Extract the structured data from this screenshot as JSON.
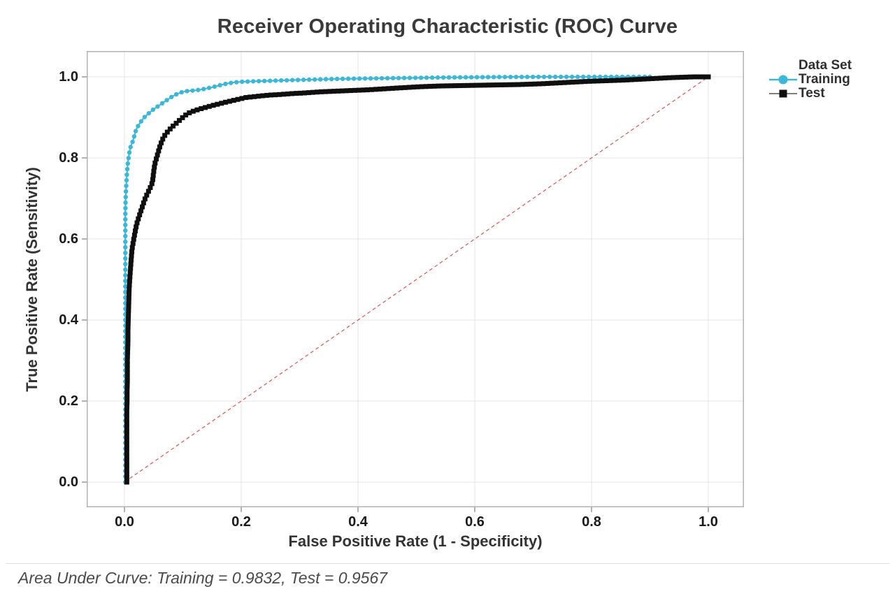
{
  "footer": {
    "text": "Area Under Curve: Training = 0.9832, Test = 0.9567"
  },
  "legend": {
    "title": "Data Set",
    "position": "right"
  },
  "colors": {
    "training": "#3bb7d8",
    "test": "#0f0f0f",
    "reference": "#e0534d",
    "grid": "#e4e4e4",
    "frame": "#b3b3b3",
    "tick": "#8a8a8a"
  },
  "chart_data": {
    "type": "line",
    "title": "Receiver Operating Characteristic (ROC) Curve",
    "xlabel": "False Positive Rate (1 - Specificity)",
    "ylabel": "True Positive Rate (Sensitivity)",
    "xlim": [
      0,
      1
    ],
    "ylim": [
      0,
      1
    ],
    "xticks": [
      "0.0",
      "0.2",
      "0.4",
      "0.6",
      "0.8",
      "1.0"
    ],
    "yticks": [
      "0.0",
      "0.2",
      "0.4",
      "0.6",
      "0.8",
      "1.0"
    ],
    "grid": true,
    "legend_position": "right",
    "reference_line": {
      "from": [
        0,
        0
      ],
      "to": [
        1,
        1
      ],
      "style": "dashed",
      "color": "#e0534d"
    },
    "series": [
      {
        "name": "Training",
        "auc": 0.9832,
        "color": "#3bb7d8",
        "marker": "circle",
        "marker_size": 3.2,
        "marker_spacing": 8,
        "line_width": 2,
        "points": [
          [
            0.0015,
            0
          ],
          [
            0.0015,
            0.035
          ],
          [
            0.0015,
            0.07
          ],
          [
            0.0015,
            0.105
          ],
          [
            0.0015,
            0.14
          ],
          [
            0.0015,
            0.175
          ],
          [
            0.0015,
            0.21
          ],
          [
            0.0015,
            0.245
          ],
          [
            0.0015,
            0.28
          ],
          [
            0.0015,
            0.315
          ],
          [
            0.0015,
            0.35
          ],
          [
            0.0015,
            0.385
          ],
          [
            0.0015,
            0.42
          ],
          [
            0.0015,
            0.455
          ],
          [
            0.0015,
            0.49
          ],
          [
            0.0015,
            0.525
          ],
          [
            0.0015,
            0.56
          ],
          [
            0.0015,
            0.595
          ],
          [
            0.0015,
            0.63
          ],
          [
            0.0015,
            0.665
          ],
          [
            0.002,
            0.7
          ],
          [
            0.003,
            0.73
          ],
          [
            0.004,
            0.755
          ],
          [
            0.005,
            0.775
          ],
          [
            0.006,
            0.79
          ],
          [
            0.007,
            0.8
          ],
          [
            0.008,
            0.81
          ],
          [
            0.009,
            0.818
          ],
          [
            0.01,
            0.825
          ],
          [
            0.012,
            0.833
          ],
          [
            0.014,
            0.84
          ],
          [
            0.016,
            0.85
          ],
          [
            0.018,
            0.86
          ],
          [
            0.02,
            0.87
          ],
          [
            0.023,
            0.878
          ],
          [
            0.026,
            0.885
          ],
          [
            0.029,
            0.891
          ],
          [
            0.032,
            0.897
          ],
          [
            0.036,
            0.903
          ],
          [
            0.04,
            0.908
          ],
          [
            0.044,
            0.913
          ],
          [
            0.048,
            0.918
          ],
          [
            0.053,
            0.923
          ],
          [
            0.058,
            0.928
          ],
          [
            0.063,
            0.933
          ],
          [
            0.068,
            0.938
          ],
          [
            0.074,
            0.944
          ],
          [
            0.08,
            0.95
          ],
          [
            0.086,
            0.955
          ],
          [
            0.092,
            0.959
          ],
          [
            0.098,
            0.962
          ],
          [
            0.105,
            0.9645
          ],
          [
            0.112,
            0.9655
          ],
          [
            0.12,
            0.9665
          ],
          [
            0.128,
            0.968
          ],
          [
            0.136,
            0.97
          ],
          [
            0.144,
            0.9725
          ],
          [
            0.152,
            0.975
          ],
          [
            0.16,
            0.978
          ],
          [
            0.168,
            0.981
          ],
          [
            0.176,
            0.9835
          ],
          [
            0.184,
            0.9855
          ],
          [
            0.193,
            0.987
          ],
          [
            0.202,
            0.988
          ],
          [
            0.212,
            0.9885
          ],
          [
            0.222,
            0.989
          ],
          [
            0.232,
            0.9895
          ],
          [
            0.243,
            0.99
          ],
          [
            0.254,
            0.9905
          ],
          [
            0.265,
            0.991
          ],
          [
            0.277,
            0.9915
          ],
          [
            0.289,
            0.992
          ],
          [
            0.301,
            0.9925
          ],
          [
            0.314,
            0.993
          ],
          [
            0.327,
            0.9935
          ],
          [
            0.34,
            0.994
          ],
          [
            0.354,
            0.9945
          ],
          [
            0.368,
            0.995
          ],
          [
            0.382,
            0.9953
          ],
          [
            0.396,
            0.9956
          ],
          [
            0.411,
            0.9959
          ],
          [
            0.426,
            0.9962
          ],
          [
            0.441,
            0.9965
          ],
          [
            0.457,
            0.9968
          ],
          [
            0.473,
            0.9971
          ],
          [
            0.489,
            0.9974
          ],
          [
            0.505,
            0.9977
          ],
          [
            0.522,
            0.998
          ],
          [
            0.539,
            0.9983
          ],
          [
            0.556,
            0.9986
          ],
          [
            0.574,
            0.9988
          ],
          [
            0.592,
            0.999
          ],
          [
            0.61,
            0.9992
          ],
          [
            0.628,
            0.9994
          ],
          [
            0.647,
            0.9996
          ],
          [
            0.666,
            0.9997
          ],
          [
            0.685,
            0.9998
          ],
          [
            0.704,
            0.9999
          ],
          [
            0.723,
            1
          ],
          [
            0.743,
            1
          ],
          [
            0.763,
            1
          ],
          [
            0.783,
            1
          ],
          [
            0.803,
            1
          ],
          [
            0.823,
            1
          ],
          [
            0.843,
            1
          ],
          [
            0.863,
            1
          ],
          [
            0.883,
            1
          ],
          [
            0.9,
            1
          ]
        ]
      },
      {
        "name": "Test",
        "auc": 0.9567,
        "color": "#0f0f0f",
        "marker": "square",
        "marker_size": 7,
        "marker_spacing": 6,
        "line_width": 3,
        "points": [
          [
            0.004,
            0
          ],
          [
            0.004,
            0.025
          ],
          [
            0.004,
            0.05
          ],
          [
            0.004,
            0.075
          ],
          [
            0.004,
            0.1
          ],
          [
            0.004,
            0.125
          ],
          [
            0.004,
            0.15
          ],
          [
            0.004,
            0.175
          ],
          [
            0.0045,
            0.2
          ],
          [
            0.0045,
            0.225
          ],
          [
            0.005,
            0.25
          ],
          [
            0.005,
            0.275
          ],
          [
            0.005,
            0.3
          ],
          [
            0.0055,
            0.325
          ],
          [
            0.006,
            0.35
          ],
          [
            0.006,
            0.375
          ],
          [
            0.0065,
            0.4
          ],
          [
            0.007,
            0.425
          ],
          [
            0.0075,
            0.45
          ],
          [
            0.008,
            0.475
          ],
          [
            0.009,
            0.5
          ],
          [
            0.01,
            0.52
          ],
          [
            0.011,
            0.54
          ],
          [
            0.012,
            0.558
          ],
          [
            0.013,
            0.575
          ],
          [
            0.015,
            0.592
          ],
          [
            0.017,
            0.608
          ],
          [
            0.019,
            0.623
          ],
          [
            0.021,
            0.637
          ],
          [
            0.024,
            0.651
          ],
          [
            0.027,
            0.664
          ],
          [
            0.03,
            0.677
          ],
          [
            0.033,
            0.69
          ],
          [
            0.036,
            0.702
          ],
          [
            0.04,
            0.714
          ],
          [
            0.044,
            0.726
          ],
          [
            0.048,
            0.74
          ],
          [
            0.05,
            0.765
          ],
          [
            0.052,
            0.785
          ],
          [
            0.055,
            0.8
          ],
          [
            0.058,
            0.815
          ],
          [
            0.061,
            0.83
          ],
          [
            0.065,
            0.845
          ],
          [
            0.07,
            0.858
          ],
          [
            0.076,
            0.868
          ],
          [
            0.082,
            0.877
          ],
          [
            0.089,
            0.886
          ],
          [
            0.096,
            0.895
          ],
          [
            0.104,
            0.905
          ],
          [
            0.112,
            0.912
          ],
          [
            0.121,
            0.917
          ],
          [
            0.13,
            0.921
          ],
          [
            0.14,
            0.925
          ],
          [
            0.15,
            0.929
          ],
          [
            0.161,
            0.933
          ],
          [
            0.172,
            0.937
          ],
          [
            0.184,
            0.941
          ],
          [
            0.196,
            0.945
          ],
          [
            0.208,
            0.949
          ],
          [
            0.221,
            0.951
          ],
          [
            0.234,
            0.953
          ],
          [
            0.248,
            0.955
          ],
          [
            0.262,
            0.956
          ],
          [
            0.276,
            0.9575
          ],
          [
            0.29,
            0.959
          ],
          [
            0.305,
            0.96
          ],
          [
            0.32,
            0.9615
          ],
          [
            0.335,
            0.963
          ],
          [
            0.351,
            0.964
          ],
          [
            0.367,
            0.965
          ],
          [
            0.383,
            0.966
          ],
          [
            0.4,
            0.967
          ],
          [
            0.417,
            0.968
          ],
          [
            0.434,
            0.9695
          ],
          [
            0.451,
            0.971
          ],
          [
            0.468,
            0.9725
          ],
          [
            0.486,
            0.974
          ],
          [
            0.504,
            0.9755
          ],
          [
            0.522,
            0.9765
          ],
          [
            0.54,
            0.9775
          ],
          [
            0.559,
            0.978
          ],
          [
            0.578,
            0.9785
          ],
          [
            0.597,
            0.979
          ],
          [
            0.616,
            0.9795
          ],
          [
            0.635,
            0.98
          ],
          [
            0.655,
            0.9805
          ],
          [
            0.675,
            0.981
          ],
          [
            0.695,
            0.982
          ],
          [
            0.715,
            0.983
          ],
          [
            0.735,
            0.9845
          ],
          [
            0.755,
            0.986
          ],
          [
            0.775,
            0.9875
          ],
          [
            0.795,
            0.989
          ],
          [
            0.815,
            0.99
          ],
          [
            0.835,
            0.991
          ],
          [
            0.855,
            0.992
          ],
          [
            0.875,
            0.9935
          ],
          [
            0.895,
            0.995
          ],
          [
            0.915,
            0.9965
          ],
          [
            0.935,
            0.998
          ],
          [
            0.955,
            0.999
          ],
          [
            0.975,
            1
          ],
          [
            1,
            1
          ]
        ]
      }
    ]
  }
}
